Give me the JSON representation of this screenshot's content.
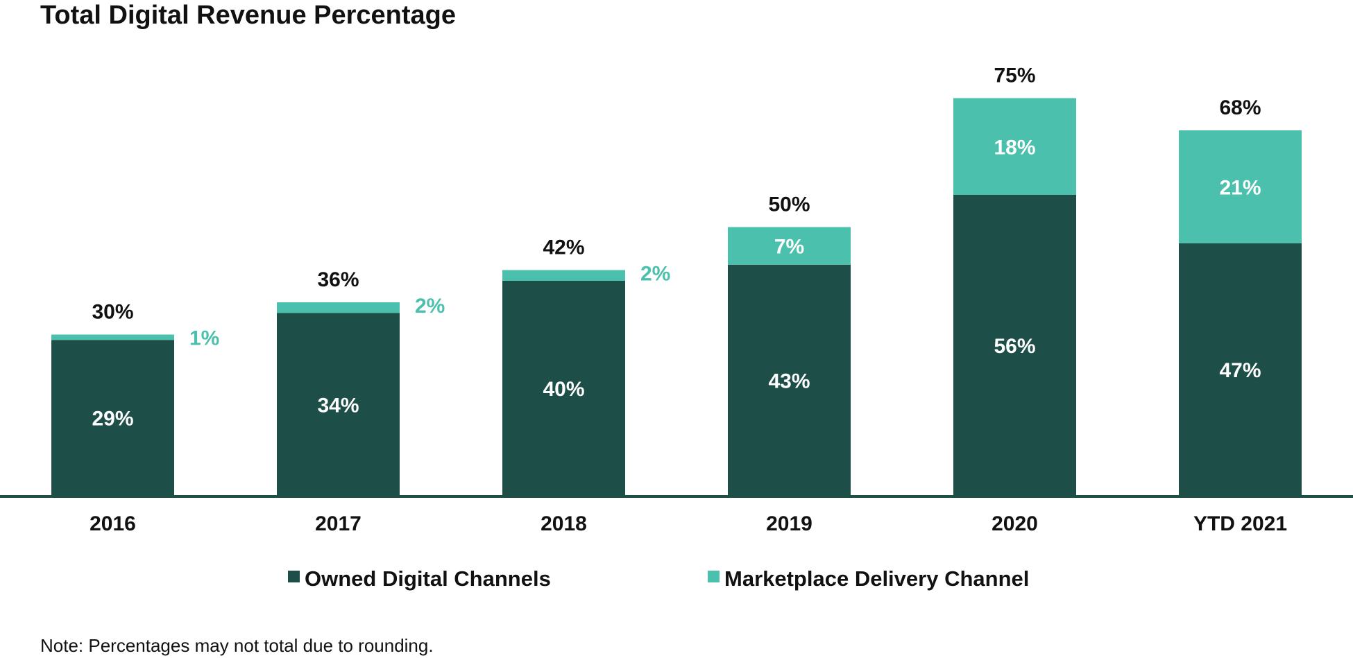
{
  "chart_data": {
    "type": "bar",
    "stacked": true,
    "title": "Total Digital Revenue Percentage",
    "note": "Note: Percentages may not total due to rounding.",
    "categories": [
      "2016",
      "2017",
      "2018",
      "2019",
      "2020",
      "YTD 2021"
    ],
    "series": [
      {
        "name": "Owned Digital Channels",
        "color": "#1d4f48",
        "values": [
          29,
          34,
          40,
          43,
          56,
          47
        ],
        "labels": [
          "29%",
          "34%",
          "40%",
          "43%",
          "56%",
          "47%"
        ]
      },
      {
        "name": "Marketplace Delivery Channel",
        "color": "#4bc0ad",
        "values": [
          1,
          2,
          2,
          7,
          18,
          21
        ],
        "labels": [
          "1%",
          "2%",
          "2%",
          "7%",
          "18%",
          "21%"
        ]
      }
    ],
    "totals": [
      30,
      36,
      42,
      50,
      75,
      68
    ],
    "total_labels": [
      "30%",
      "36%",
      "42%",
      "50%",
      "75%",
      "68%"
    ],
    "xlabel": "",
    "ylabel": "",
    "ylim": [
      0,
      75
    ],
    "grid": false,
    "legend": "bottom-center"
  }
}
